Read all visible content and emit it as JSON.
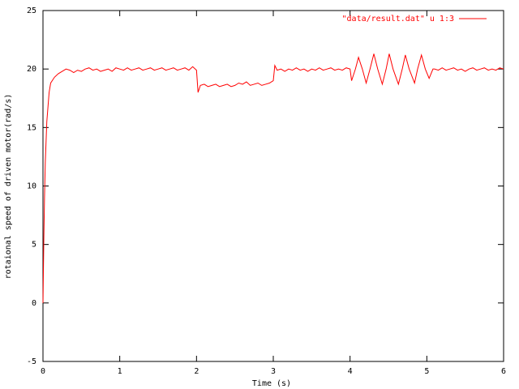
{
  "chart_data": {
    "type": "line",
    "xlabel": "Time (s)",
    "ylabel": "rotaional speed of driven motor(rad/s)",
    "xlim": [
      0,
      6
    ],
    "xticks": [
      0,
      1,
      2,
      3,
      4,
      5,
      6
    ],
    "ylim": [
      -5,
      25
    ],
    "yticks": [
      -5,
      0,
      5,
      10,
      15,
      20,
      25
    ],
    "grid": false,
    "legend": "top-right",
    "x": [
      0,
      0.01,
      0.02,
      0.03,
      0.05,
      0.08,
      0.1,
      0.15,
      0.2,
      0.25,
      0.3,
      0.35,
      0.4,
      0.45,
      0.5,
      0.55,
      0.6,
      0.65,
      0.7,
      0.75,
      0.8,
      0.85,
      0.9,
      0.95,
      1.0,
      1.05,
      1.1,
      1.15,
      1.2,
      1.25,
      1.3,
      1.35,
      1.4,
      1.45,
      1.5,
      1.55,
      1.6,
      1.65,
      1.7,
      1.75,
      1.8,
      1.85,
      1.9,
      1.95,
      2.0,
      2.02,
      2.05,
      2.1,
      2.15,
      2.2,
      2.25,
      2.3,
      2.35,
      2.4,
      2.45,
      2.5,
      2.55,
      2.6,
      2.65,
      2.7,
      2.75,
      2.8,
      2.85,
      2.9,
      2.95,
      3.0,
      3.02,
      3.05,
      3.1,
      3.15,
      3.2,
      3.25,
      3.3,
      3.35,
      3.4,
      3.45,
      3.5,
      3.55,
      3.6,
      3.65,
      3.7,
      3.75,
      3.8,
      3.85,
      3.9,
      3.95,
      4.0,
      4.02,
      4.07,
      4.11,
      4.16,
      4.21,
      4.26,
      4.31,
      4.36,
      4.42,
      4.47,
      4.51,
      4.56,
      4.63,
      4.68,
      4.72,
      4.77,
      4.84,
      4.88,
      4.93,
      4.98,
      5.03,
      5.08,
      5.1,
      5.15,
      5.2,
      5.25,
      5.3,
      5.35,
      5.4,
      5.45,
      5.5,
      5.55,
      5.6,
      5.65,
      5.7,
      5.75,
      5.8,
      5.85,
      5.9,
      5.95,
      6.0
    ],
    "series": [
      {
        "name": "\"data/result.dat\" u 1:3",
        "color": "#ff0000",
        "values": [
          0,
          5,
          9,
          12,
          15.5,
          18,
          18.8,
          19.3,
          19.6,
          19.8,
          20,
          19.9,
          19.7,
          19.9,
          19.8,
          20.0,
          20.1,
          19.9,
          20.0,
          19.8,
          19.9,
          20.0,
          19.8,
          20.1,
          20.0,
          19.9,
          20.1,
          19.9,
          20.0,
          20.1,
          19.9,
          20.0,
          20.1,
          19.9,
          20.0,
          20.1,
          19.9,
          20.0,
          20.1,
          19.9,
          20.0,
          20.1,
          19.9,
          20.2,
          19.9,
          18.0,
          18.6,
          18.7,
          18.5,
          18.6,
          18.7,
          18.5,
          18.6,
          18.7,
          18.5,
          18.6,
          18.8,
          18.7,
          18.9,
          18.6,
          18.7,
          18.8,
          18.6,
          18.7,
          18.8,
          19.0,
          20.3,
          19.9,
          20.0,
          19.8,
          20.0,
          19.9,
          20.1,
          19.9,
          20.0,
          19.8,
          20.0,
          19.9,
          20.1,
          19.9,
          20.0,
          20.1,
          19.9,
          20.0,
          19.9,
          20.1,
          20,
          19.0,
          20,
          21.0,
          20,
          18.8,
          20,
          21.3,
          20,
          18.7,
          20,
          21.3,
          20,
          18.7,
          20,
          21.2,
          20,
          18.8,
          20,
          21.2,
          20,
          19.2,
          20,
          20.0,
          19.9,
          20.1,
          19.9,
          20.0,
          20.1,
          19.9,
          20.0,
          19.8,
          20.0,
          20.1,
          19.9,
          20.0,
          20.1,
          19.9,
          20.0,
          19.9,
          20.1,
          20.0
        ]
      }
    ]
  }
}
